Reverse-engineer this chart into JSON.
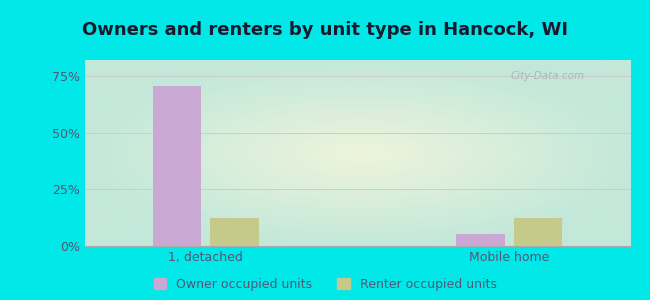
{
  "title": "Owners and renters by unit type in Hancock, WI",
  "categories": [
    "1, detached",
    "Mobile home"
  ],
  "owner_values": [
    0.706,
    0.054
  ],
  "renter_values": [
    0.122,
    0.122
  ],
  "owner_color": "#c9a8d4",
  "renter_color": "#c5c98a",
  "yticks": [
    0,
    0.25,
    0.5,
    0.75
  ],
  "ytick_labels": [
    "0%",
    "25%",
    "50%",
    "75%"
  ],
  "ylim": [
    0,
    0.82
  ],
  "bar_width": 0.32,
  "group_positions": [
    1.0,
    3.0
  ],
  "legend_labels": [
    "Owner occupied units",
    "Renter occupied units"
  ],
  "bg_outer_color": "#00e8e8",
  "bg_inner_color_center": "#eef4dc",
  "bg_inner_color_edge": "#d0f0e8",
  "watermark": "City-Data.com",
  "title_fontsize": 13,
  "tick_fontsize": 9,
  "legend_fontsize": 9,
  "title_color": "#1a1a2e",
  "tick_color": "#555577"
}
